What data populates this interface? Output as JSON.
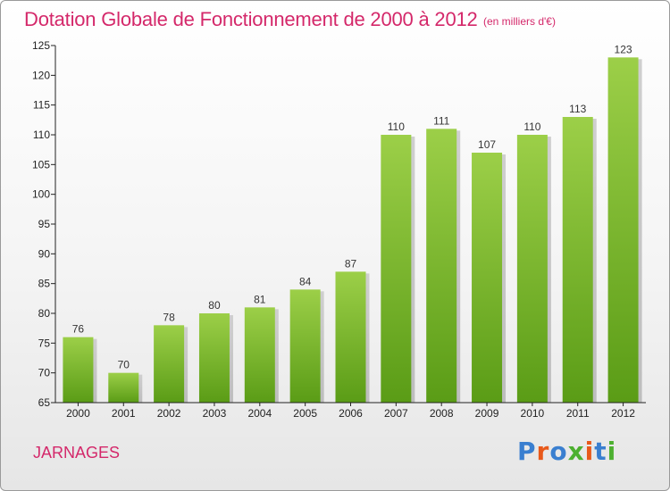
{
  "title": "Dotation Globale de Fonctionnement de 2000 à 2012",
  "unit_note": "(en milliers d'€)",
  "city": "JARNAGES",
  "logo": {
    "text": "Proxiti",
    "letter_colors": [
      "#3a7fd0",
      "#e8591a",
      "#3a7fd0",
      "#4db030",
      "#e8591a",
      "#3a7fd0",
      "#4db030"
    ]
  },
  "colors": {
    "title": "#d4286a",
    "bar_top": "#9ccf48",
    "bar_bottom": "#5a9c16",
    "axis": "#222222"
  },
  "chart_data": {
    "type": "bar",
    "categories": [
      "2000",
      "2001",
      "2002",
      "2003",
      "2004",
      "2005",
      "2006",
      "2007",
      "2008",
      "2009",
      "2010",
      "2011",
      "2012"
    ],
    "values": [
      76,
      70,
      78,
      80,
      81,
      84,
      87,
      110,
      111,
      107,
      110,
      113,
      123
    ],
    "data_labels": [
      "76",
      "70",
      "78",
      "80",
      "81",
      "84",
      "87",
      "110",
      "111",
      "107",
      "110",
      "113",
      "123"
    ],
    "ylim": [
      65,
      125
    ],
    "yticks": [
      "65",
      "70",
      "75",
      "80",
      "85",
      "90",
      "95",
      "100",
      "105",
      "110",
      "115",
      "120",
      "125"
    ],
    "grid": false,
    "title": "Dotation Globale de Fonctionnement de 2000 à 2012"
  }
}
